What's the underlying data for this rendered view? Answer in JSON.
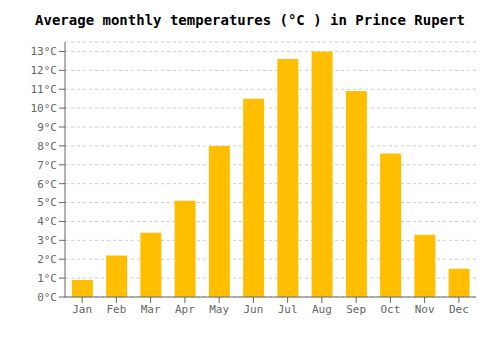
{
  "chart_data": {
    "type": "bar",
    "title": "Average monthly temperatures (°C ) in Prince Rupert",
    "categories": [
      "Jan",
      "Feb",
      "Mar",
      "Apr",
      "May",
      "Jun",
      "Jul",
      "Aug",
      "Sep",
      "Oct",
      "Nov",
      "Dec"
    ],
    "values": [
      0.9,
      2.2,
      3.4,
      5.1,
      8.0,
      10.5,
      12.6,
      13.0,
      10.9,
      7.6,
      3.3,
      1.5
    ],
    "color": "#FFBF00",
    "ylim": [
      0,
      13.5
    ],
    "yticks": [
      {
        "value": 0,
        "label": "0°C"
      },
      {
        "value": 1,
        "label": "1°C"
      },
      {
        "value": 2,
        "label": "2°C"
      },
      {
        "value": 3,
        "label": "3°C"
      },
      {
        "value": 4,
        "label": "4°C"
      },
      {
        "value": 5,
        "label": "5°C"
      },
      {
        "value": 6,
        "label": "6°C"
      },
      {
        "value": 7,
        "label": "7°C"
      },
      {
        "value": 8,
        "label": "8°C"
      },
      {
        "value": 9,
        "label": "9°C"
      },
      {
        "value": 10,
        "label": "10°C"
      },
      {
        "value": 11,
        "label": "11°C"
      },
      {
        "value": 12,
        "label": "12°C"
      },
      {
        "value": 13,
        "label": "13°C"
      }
    ],
    "grid": true
  }
}
